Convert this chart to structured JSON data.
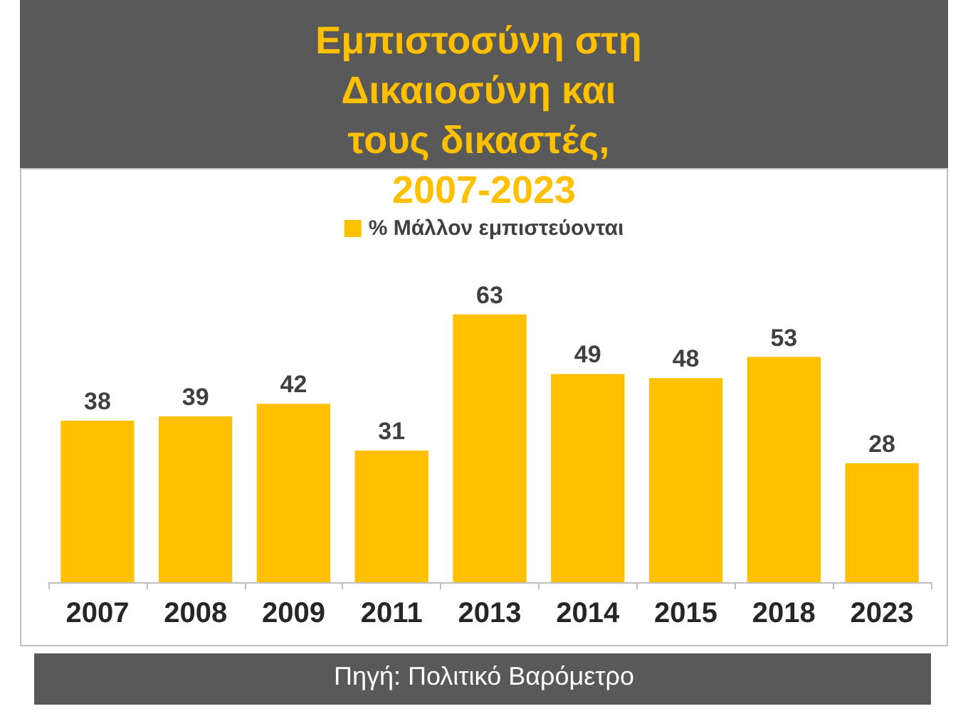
{
  "chart_data": {
    "type": "bar",
    "title": "Εμπιστοσύνη στη Δικαιοσύνη και τους δικαστές, 2007-2023",
    "categories": [
      "2007",
      "2008",
      "2009",
      "2011",
      "2013",
      "2014",
      "2015",
      "2018",
      "2023"
    ],
    "series": [
      {
        "name": "% Μάλλον εμπιστεύονται",
        "color": "#ffc000",
        "values": [
          38,
          39,
          42,
          31,
          63,
          49,
          48,
          53,
          28
        ]
      }
    ],
    "relative": false,
    "data_labels": true,
    "legend": "top",
    "annotations": [
      "Πηγή: Πολιτικό Βαρόμετρο"
    ]
  }
}
